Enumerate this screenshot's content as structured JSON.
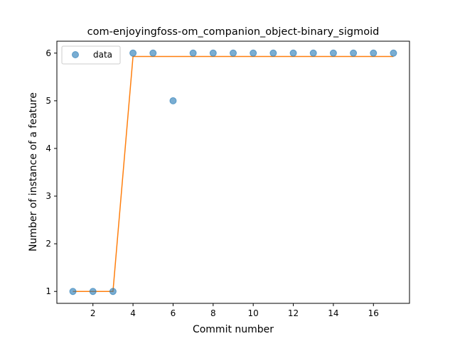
{
  "chart_data": {
    "type": "scatter",
    "title": "com-enjoyingfoss-om_companion_object-binary_sigmoid",
    "xlabel": "Commit number",
    "ylabel": "Number of instance of a feature",
    "xlim": [
      0.2,
      17.8
    ],
    "ylim": [
      0.75,
      6.25
    ],
    "xticks": [
      2,
      4,
      6,
      8,
      10,
      12,
      14,
      16
    ],
    "yticks": [
      1,
      2,
      3,
      4,
      5,
      6
    ],
    "grid": false,
    "legend_position": "top-left",
    "series": [
      {
        "name": "data",
        "kind": "scatter",
        "color": "#1f77b4",
        "x": [
          1,
          2,
          3,
          4,
          5,
          6,
          7,
          8,
          9,
          10,
          11,
          12,
          13,
          14,
          15,
          16,
          17
        ],
        "y": [
          1,
          1,
          1,
          6,
          6,
          5,
          6,
          6,
          6,
          6,
          6,
          6,
          6,
          6,
          6,
          6,
          6
        ]
      },
      {
        "kind": "line",
        "color": "#ff7f0e",
        "x": [
          1,
          2,
          3,
          4,
          5,
          6,
          7,
          8,
          9,
          10,
          11,
          12,
          13,
          14,
          15,
          16,
          17
        ],
        "y": [
          1,
          1,
          1,
          5.93,
          5.93,
          5.93,
          5.93,
          5.93,
          5.93,
          5.93,
          5.93,
          5.93,
          5.93,
          5.93,
          5.93,
          5.93,
          5.93
        ]
      }
    ]
  }
}
